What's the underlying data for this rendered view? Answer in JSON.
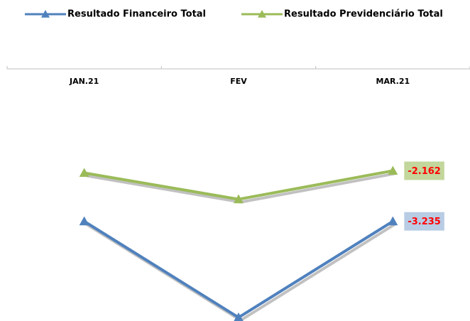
{
  "chart_data": {
    "type": "line",
    "categories": [
      "JAN.21",
      "FEV",
      "MAR.21"
    ],
    "series": [
      {
        "name": "Resultado Financeiro Total",
        "color": "#4f81bd",
        "label_box": "#b8cce4",
        "values": [
          -3235,
          -5275,
          -3235
        ],
        "value_labels": [
          null,
          null,
          "-3.235"
        ]
      },
      {
        "name": "Resultado Previdenciário Total",
        "color": "#9bbb59",
        "label_box": "#c3d69b",
        "values": [
          -2207,
          -2767,
          -2162
        ],
        "value_labels": [
          null,
          null,
          "-2.162"
        ]
      }
    ],
    "ylim": [
      -5350,
      0
    ],
    "label_color": "#ff0000",
    "legend": "top"
  }
}
